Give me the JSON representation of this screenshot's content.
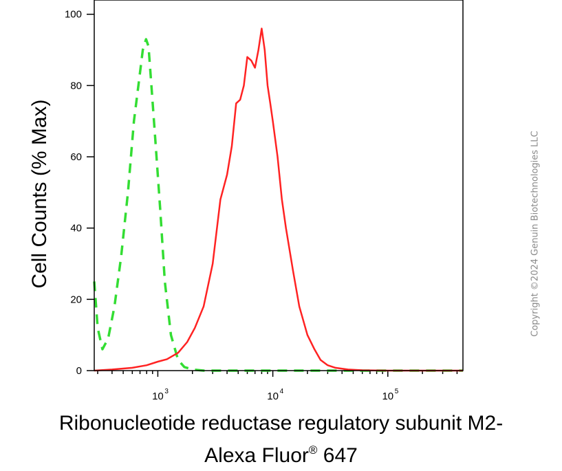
{
  "chart_data": {
    "type": "line",
    "ylabel": "Cell Counts (% Max)",
    "xlabel_line1": "Ribonucleotide reductase regulatory subunit M2-",
    "xlabel_line2_main": "Alexa Fluor",
    "xlabel_line2_sup": "®",
    "xlabel_line2_end": " 647",
    "x_scale": "log",
    "xlim": [
      280,
      450000
    ],
    "ylim": [
      0,
      104
    ],
    "y_ticks": [
      0,
      20,
      40,
      60,
      80,
      100
    ],
    "y_tick_labels": [
      "0",
      "20",
      "40",
      "60",
      "80",
      "100"
    ],
    "x_ticks": [
      1000,
      10000,
      100000
    ],
    "x_tick_labels": [
      "10",
      "10",
      "10"
    ],
    "x_tick_exponents": [
      "3",
      "4",
      "5"
    ],
    "grid": false,
    "legend": "none",
    "series": [
      {
        "color": "#33dd33",
        "style": "dashed",
        "x": [
          280,
          300,
          330,
          370,
          420,
          480,
          550,
          620,
          690,
          740,
          790,
          830,
          880,
          950,
          1050,
          1150,
          1300,
          1500,
          1700,
          2000,
          2500,
          3000,
          5000,
          10000,
          30000,
          100000,
          450000
        ],
        "y": [
          25,
          12,
          6,
          9,
          18,
          32,
          50,
          70,
          82,
          90,
          93,
          91,
          80,
          65,
          45,
          25,
          10,
          3,
          1,
          0.3,
          0,
          0,
          0,
          0,
          0,
          0,
          0
        ]
      },
      {
        "color": "#ff2222",
        "style": "solid",
        "x": [
          280,
          400,
          600,
          800,
          1000,
          1200,
          1500,
          1800,
          2100,
          2500,
          3000,
          3500,
          4000,
          4400,
          4800,
          5200,
          5600,
          6000,
          6500,
          7000,
          7500,
          8000,
          8500,
          9000,
          9500,
          10000,
          11000,
          12000,
          13000,
          15000,
          17000,
          20000,
          23000,
          26000,
          30000,
          35000,
          45000,
          60000,
          100000,
          200000,
          450000
        ],
        "y": [
          0,
          0.3,
          0.8,
          1.5,
          2.5,
          3.2,
          5,
          8,
          12,
          18,
          30,
          48,
          55,
          63,
          75,
          76,
          80,
          88,
          87,
          85,
          90,
          96,
          90,
          80,
          75,
          70,
          60,
          48,
          40,
          28,
          18,
          10,
          6,
          3,
          1.5,
          0.8,
          0.3,
          0.1,
          0,
          0,
          0
        ]
      }
    ]
  },
  "watermark": "Copyright ©2024 Genuin Biotechnologies LLC"
}
